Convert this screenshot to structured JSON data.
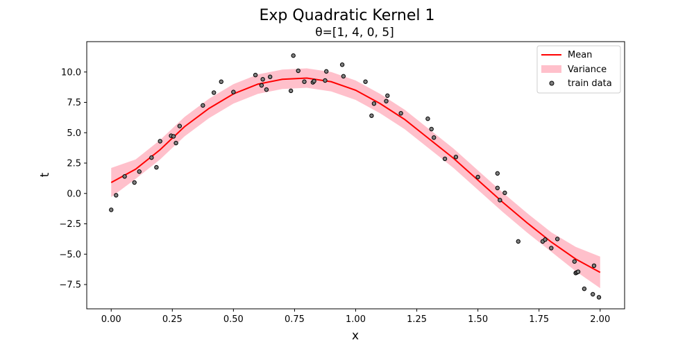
{
  "chart_data": {
    "type": "line",
    "title": "Exp Quadratic Kernel 1",
    "subtitle": "θ=[1, 4, 0, 5]",
    "xlabel": "x",
    "ylabel": "t",
    "xlim": [
      -0.1,
      2.1
    ],
    "ylim": [
      -9.5,
      12.5
    ],
    "xticks": [
      0.0,
      0.25,
      0.5,
      0.75,
      1.0,
      1.25,
      1.5,
      1.75,
      2.0
    ],
    "xtick_labels": [
      "0.00",
      "0.25",
      "0.50",
      "0.75",
      "1.00",
      "1.25",
      "1.50",
      "1.75",
      "2.00"
    ],
    "yticks": [
      -7.5,
      -5.0,
      -2.5,
      0.0,
      2.5,
      5.0,
      7.5,
      10.0
    ],
    "ytick_labels": [
      "−7.5",
      "−5.0",
      "−2.5",
      "0.0",
      "2.5",
      "5.0",
      "7.5",
      "10.0"
    ],
    "grid": false,
    "legend_position": "top-right",
    "legend": [
      "Mean",
      "Variance",
      "train data"
    ],
    "colors": {
      "mean": "#ff0000",
      "variance": "#ffc0cb",
      "points": "#808080",
      "point_edge": "#000000"
    },
    "series": [
      {
        "name": "Mean",
        "x": [
          0.0,
          0.1,
          0.2,
          0.3,
          0.4,
          0.5,
          0.6,
          0.7,
          0.8,
          0.9,
          1.0,
          1.1,
          1.2,
          1.3,
          1.4,
          1.5,
          1.6,
          1.7,
          1.8,
          1.9,
          2.0
        ],
        "y": [
          0.9,
          2.0,
          3.6,
          5.5,
          7.0,
          8.2,
          9.0,
          9.4,
          9.5,
          9.2,
          8.5,
          7.4,
          6.1,
          4.5,
          2.9,
          1.1,
          -0.7,
          -2.4,
          -4.0,
          -5.4,
          -6.5
        ]
      },
      {
        "name": "Variance",
        "type": "band",
        "x": [
          0.0,
          0.1,
          0.2,
          0.3,
          0.4,
          0.5,
          0.6,
          0.7,
          0.8,
          0.9,
          1.0,
          1.1,
          1.2,
          1.3,
          1.4,
          1.5,
          1.6,
          1.7,
          1.8,
          1.9,
          2.0
        ],
        "lower": [
          -0.3,
          1.2,
          2.8,
          4.7,
          6.2,
          7.4,
          8.2,
          8.6,
          8.7,
          8.4,
          7.7,
          6.6,
          5.3,
          3.7,
          2.1,
          0.3,
          -1.5,
          -3.2,
          -4.8,
          -6.4,
          -7.8
        ],
        "upper": [
          2.1,
          2.8,
          4.4,
          6.3,
          7.8,
          9.0,
          9.8,
          10.2,
          10.3,
          10.0,
          9.3,
          8.2,
          6.9,
          5.3,
          3.7,
          1.9,
          0.1,
          -1.6,
          -3.2,
          -4.4,
          -5.2
        ]
      },
      {
        "name": "train data",
        "type": "scatter",
        "points": [
          [
            0.0,
            -1.35
          ],
          [
            0.02,
            -0.15
          ],
          [
            0.055,
            1.4
          ],
          [
            0.095,
            0.9
          ],
          [
            0.115,
            1.8
          ],
          [
            0.165,
            2.95
          ],
          [
            0.185,
            2.15
          ],
          [
            0.2,
            4.3
          ],
          [
            0.245,
            4.75
          ],
          [
            0.255,
            4.7
          ],
          [
            0.265,
            4.15
          ],
          [
            0.28,
            5.55
          ],
          [
            0.375,
            7.25
          ],
          [
            0.42,
            8.3
          ],
          [
            0.45,
            9.2
          ],
          [
            0.5,
            8.35
          ],
          [
            0.59,
            9.75
          ],
          [
            0.615,
            8.9
          ],
          [
            0.62,
            9.4
          ],
          [
            0.635,
            8.55
          ],
          [
            0.65,
            9.6
          ],
          [
            0.735,
            8.45
          ],
          [
            0.745,
            11.35
          ],
          [
            0.765,
            10.1
          ],
          [
            0.79,
            9.2
          ],
          [
            0.825,
            9.15
          ],
          [
            0.83,
            9.25
          ],
          [
            0.875,
            9.3
          ],
          [
            0.88,
            10.05
          ],
          [
            0.945,
            10.6
          ],
          [
            0.95,
            9.65
          ],
          [
            1.04,
            9.2
          ],
          [
            1.065,
            6.4
          ],
          [
            1.075,
            7.4
          ],
          [
            1.125,
            7.6
          ],
          [
            1.13,
            8.05
          ],
          [
            1.185,
            6.6
          ],
          [
            1.295,
            6.15
          ],
          [
            1.31,
            5.3
          ],
          [
            1.32,
            4.6
          ],
          [
            1.365,
            2.85
          ],
          [
            1.41,
            3.0
          ],
          [
            1.5,
            1.35
          ],
          [
            1.58,
            0.45
          ],
          [
            1.58,
            1.65
          ],
          [
            1.59,
            -0.55
          ],
          [
            1.61,
            0.05
          ],
          [
            1.665,
            -3.95
          ],
          [
            1.765,
            -3.95
          ],
          [
            1.775,
            -3.8
          ],
          [
            1.8,
            -4.5
          ],
          [
            1.825,
            -3.75
          ],
          [
            1.895,
            -5.6
          ],
          [
            1.9,
            -6.55
          ],
          [
            1.905,
            -6.5
          ],
          [
            1.91,
            -6.45
          ],
          [
            1.935,
            -7.85
          ],
          [
            1.97,
            -8.3
          ],
          [
            1.975,
            -5.95
          ],
          [
            1.995,
            -8.55
          ]
        ]
      }
    ]
  }
}
